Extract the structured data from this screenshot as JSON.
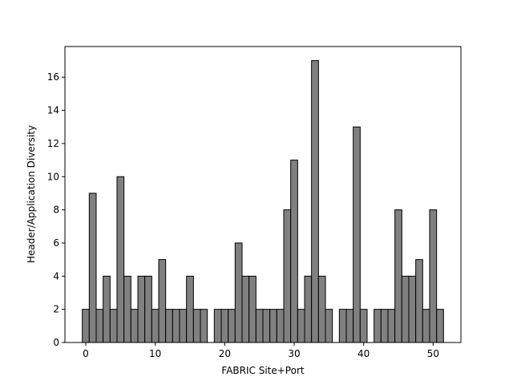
{
  "chart_data": {
    "type": "bar",
    "xlabel": "FABRIC Site+Port",
    "ylabel": "Header/Application Diversity",
    "x": [
      0,
      1,
      2,
      3,
      4,
      5,
      6,
      7,
      8,
      9,
      10,
      11,
      12,
      13,
      14,
      15,
      16,
      17,
      19,
      20,
      21,
      22,
      23,
      24,
      25,
      26,
      27,
      28,
      29,
      30,
      31,
      32,
      33,
      34,
      35,
      37,
      38,
      39,
      40,
      42,
      43,
      44,
      45,
      46,
      47,
      48,
      49,
      50,
      51
    ],
    "values": [
      2,
      9,
      2,
      4,
      2,
      10,
      4,
      2,
      4,
      4,
      2,
      5,
      2,
      2,
      2,
      4,
      2,
      2,
      2,
      2,
      2,
      6,
      4,
      4,
      2,
      2,
      2,
      2,
      8,
      11,
      2,
      4,
      17,
      4,
      2,
      2,
      2,
      13,
      2,
      2,
      2,
      2,
      8,
      4,
      4,
      5,
      2,
      8,
      2
    ],
    "color": "#808080",
    "xlim": [
      -3,
      54
    ],
    "ylim": [
      0,
      17.85
    ],
    "xticks": [
      0,
      10,
      20,
      30,
      40,
      50
    ],
    "yticks": [
      0,
      2,
      4,
      6,
      8,
      10,
      12,
      14,
      16
    ]
  }
}
